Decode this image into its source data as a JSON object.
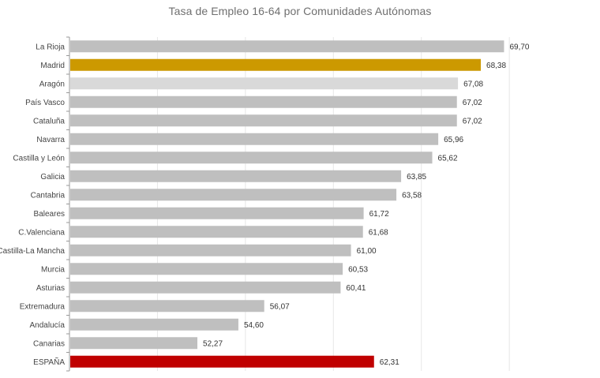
{
  "chart_data": {
    "type": "bar",
    "orientation": "horizontal",
    "title": "Tasa de Empleo 16-64 por Comunidades  Autónomas",
    "xlabel": "",
    "ylabel": "",
    "xlim": [
      45,
      73
    ],
    "grid": "vertical",
    "legend": "none",
    "categories": [
      "La Rioja",
      "Madrid",
      "Aragón",
      "País Vasco",
      "Cataluña",
      "Navarra",
      "Castilla y León",
      "Galicia",
      "Cantabria",
      "Baleares",
      "C.Valenciana",
      "Castilla-La Mancha",
      "Murcia",
      "Asturias",
      "Extremadura",
      "Andalucía",
      "Canarias",
      "ESPAÑA"
    ],
    "values": [
      69.7,
      68.38,
      67.08,
      67.02,
      67.02,
      65.96,
      65.62,
      63.85,
      63.58,
      61.72,
      61.68,
      61.0,
      60.53,
      60.41,
      56.07,
      54.6,
      52.27,
      62.31
    ],
    "value_labels": [
      "69,70",
      "68,38",
      "67,08",
      "67,02",
      "67,02",
      "65,96",
      "65,62",
      "63,85",
      "63,58",
      "61,72",
      "61,68",
      "61,00",
      "60,53",
      "60,41",
      "56,07",
      "54,60",
      "52,27",
      "62,31"
    ],
    "colors": {
      "default": "#bfbfbf",
      "highlight_madrid": "#cc9900",
      "highlight_spain": "#c00000",
      "light_aragon": "#d9d9d9",
      "grid": "#e6e6e6",
      "axis": "#999999"
    },
    "bar_colors": [
      "#bfbfbf",
      "#cc9900",
      "#d9d9d9",
      "#bfbfbf",
      "#bfbfbf",
      "#bfbfbf",
      "#bfbfbf",
      "#bfbfbf",
      "#bfbfbf",
      "#bfbfbf",
      "#bfbfbf",
      "#bfbfbf",
      "#bfbfbf",
      "#bfbfbf",
      "#bfbfbf",
      "#bfbfbf",
      "#bfbfbf",
      "#c00000"
    ]
  }
}
